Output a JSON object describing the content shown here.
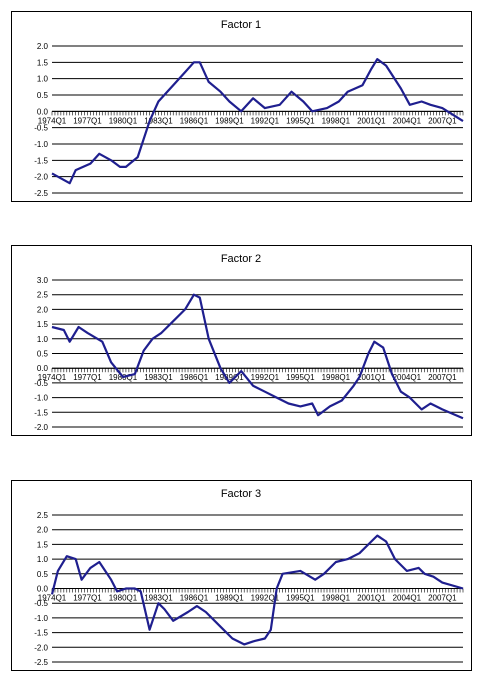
{
  "chart_data": [
    {
      "type": "line",
      "title": "Factor 1",
      "ylim": [
        -2.5,
        2.0
      ],
      "yticks": [
        "2.0",
        "1.5",
        "1.0",
        "0.5",
        "0.0",
        "-0.5",
        "-1.0",
        "-1.5",
        "-2.0",
        "-2.5"
      ],
      "x_start": "1974Q1",
      "x_end": "2008Q4",
      "x_tick_labels": [
        "1974Q1",
        "1977Q1",
        "1980Q1",
        "1983Q1",
        "1986Q1",
        "1989Q1",
        "1992Q1",
        "1995Q1",
        "1998Q1",
        "2001Q1",
        "2004Q1",
        "2007Q1"
      ],
      "grid": true,
      "series": [
        {
          "color": "#1f1f8f",
          "x": [
            "1974Q1",
            "1975Q3",
            "1976Q1",
            "1977Q2",
            "1978Q1",
            "1979Q1",
            "1979Q4",
            "1980Q2",
            "1981Q2",
            "1982Q2",
            "1983Q1",
            "1984Q2",
            "1985Q2",
            "1986Q1",
            "1986Q3",
            "1987Q2",
            "1988Q2",
            "1989Q1",
            "1990Q1",
            "1991Q1",
            "1992Q1",
            "1993Q2",
            "1994Q2",
            "1995Q2",
            "1996Q1",
            "1997Q2",
            "1998Q2",
            "1999Q1",
            "2000Q2",
            "2001Q1",
            "2001Q3",
            "2002Q2",
            "2003Q3",
            "2004Q2",
            "2005Q2",
            "2006Q1",
            "2007Q1",
            "2008Q4"
          ],
          "values": [
            -1.9,
            -2.2,
            -1.8,
            -1.6,
            -1.3,
            -1.5,
            -1.7,
            -1.7,
            -1.4,
            -0.3,
            0.3,
            0.8,
            1.2,
            1.5,
            1.5,
            0.9,
            0.6,
            0.3,
            0.0,
            0.4,
            0.1,
            0.2,
            0.6,
            0.3,
            0.0,
            0.1,
            0.3,
            0.6,
            0.8,
            1.3,
            1.6,
            1.4,
            0.7,
            0.2,
            0.3,
            0.2,
            0.1,
            -0.3
          ]
        }
      ]
    },
    {
      "type": "line",
      "title": "Factor 2",
      "ylim": [
        -2.0,
        3.0
      ],
      "yticks": [
        "3.0",
        "2.5",
        "2.0",
        "1.5",
        "1.0",
        "0.5",
        "0.0",
        "-0.5",
        "-1.0",
        "-1.5",
        "-2.0"
      ],
      "x_start": "1974Q1",
      "x_end": "2008Q4",
      "x_tick_labels": [
        "1974Q1",
        "1977Q1",
        "1980Q1",
        "1983Q1",
        "1986Q1",
        "1989Q1",
        "1992Q1",
        "1995Q1",
        "1998Q1",
        "2001Q1",
        "2004Q1",
        "2007Q1"
      ],
      "grid": true,
      "series": [
        {
          "color": "#1f1f8f",
          "x": [
            "1974Q1",
            "1975Q1",
            "1975Q3",
            "1976Q2",
            "1977Q1",
            "1978Q2",
            "1979Q1",
            "1980Q1",
            "1981Q1",
            "1981Q4",
            "1982Q3",
            "1983Q2",
            "1984Q2",
            "1985Q2",
            "1986Q1",
            "1986Q3",
            "1987Q2",
            "1988Q2",
            "1989Q1",
            "1990Q1",
            "1991Q1",
            "1992Q1",
            "1993Q1",
            "1994Q1",
            "1995Q1",
            "1996Q1",
            "1996Q3",
            "1997Q3",
            "1998Q3",
            "1999Q3",
            "2000Q1",
            "2000Q4",
            "2001Q2",
            "2002Q1",
            "2002Q4",
            "2003Q3",
            "2004Q2",
            "2005Q2",
            "2006Q1",
            "2007Q1",
            "2008Q4"
          ],
          "values": [
            1.4,
            1.3,
            0.9,
            1.4,
            1.2,
            0.9,
            0.2,
            -0.3,
            -0.2,
            0.6,
            1.0,
            1.2,
            1.6,
            2.0,
            2.5,
            2.4,
            1.0,
            0.0,
            -0.5,
            -0.1,
            -0.6,
            -0.8,
            -1.0,
            -1.2,
            -1.3,
            -1.2,
            -1.6,
            -1.3,
            -1.1,
            -0.6,
            -0.3,
            0.5,
            0.9,
            0.7,
            -0.2,
            -0.8,
            -1.0,
            -1.4,
            -1.2,
            -1.4,
            -1.7
          ]
        }
      ]
    },
    {
      "type": "line",
      "title": "Factor 3",
      "ylim": [
        -2.5,
        2.5
      ],
      "yticks": [
        "2.5",
        "2.0",
        "1.5",
        "1.0",
        "0.5",
        "0.0",
        "-0.5",
        "-1.0",
        "-1.5",
        "-2.0",
        "-2.5"
      ],
      "x_start": "1974Q1",
      "x_end": "2008Q4",
      "x_tick_labels": [
        "1974Q1",
        "1977Q1",
        "1980Q1",
        "1983Q1",
        "1986Q1",
        "1989Q1",
        "1992Q1",
        "1995Q1",
        "1998Q1",
        "2001Q1",
        "2004Q1",
        "2007Q1"
      ],
      "grid": true,
      "series": [
        {
          "color": "#1f1f8f",
          "x": [
            "1974Q1",
            "1974Q3",
            "1975Q2",
            "1976Q1",
            "1976Q3",
            "1977Q2",
            "1978Q1",
            "1979Q1",
            "1979Q3",
            "1980Q2",
            "1981Q1",
            "1981Q3",
            "1982Q2",
            "1983Q1",
            "1983Q3",
            "1984Q2",
            "1985Q3",
            "1986Q2",
            "1987Q1",
            "1988Q2",
            "1989Q2",
            "1990Q2",
            "1991Q1",
            "1992Q1",
            "1992Q3",
            "1993Q1",
            "1993Q3",
            "1995Q1",
            "1996Q2",
            "1997Q1",
            "1998Q1",
            "1999Q1",
            "2000Q1",
            "2001Q1",
            "2001Q3",
            "2002Q2",
            "2003Q1",
            "2004Q1",
            "2005Q1",
            "2005Q3",
            "2006Q2",
            "2007Q1",
            "2008Q4"
          ],
          "values": [
            -0.2,
            0.6,
            1.1,
            1.0,
            0.3,
            0.7,
            0.9,
            0.3,
            -0.1,
            0.0,
            0.0,
            -0.1,
            -1.4,
            -0.5,
            -0.7,
            -1.1,
            -0.8,
            -0.6,
            -0.8,
            -1.3,
            -1.7,
            -1.9,
            -1.8,
            -1.7,
            -1.4,
            0.0,
            0.5,
            0.6,
            0.3,
            0.5,
            0.9,
            1.0,
            1.2,
            1.6,
            1.8,
            1.6,
            1.0,
            0.6,
            0.7,
            0.5,
            0.4,
            0.2,
            0.0
          ]
        }
      ]
    }
  ]
}
